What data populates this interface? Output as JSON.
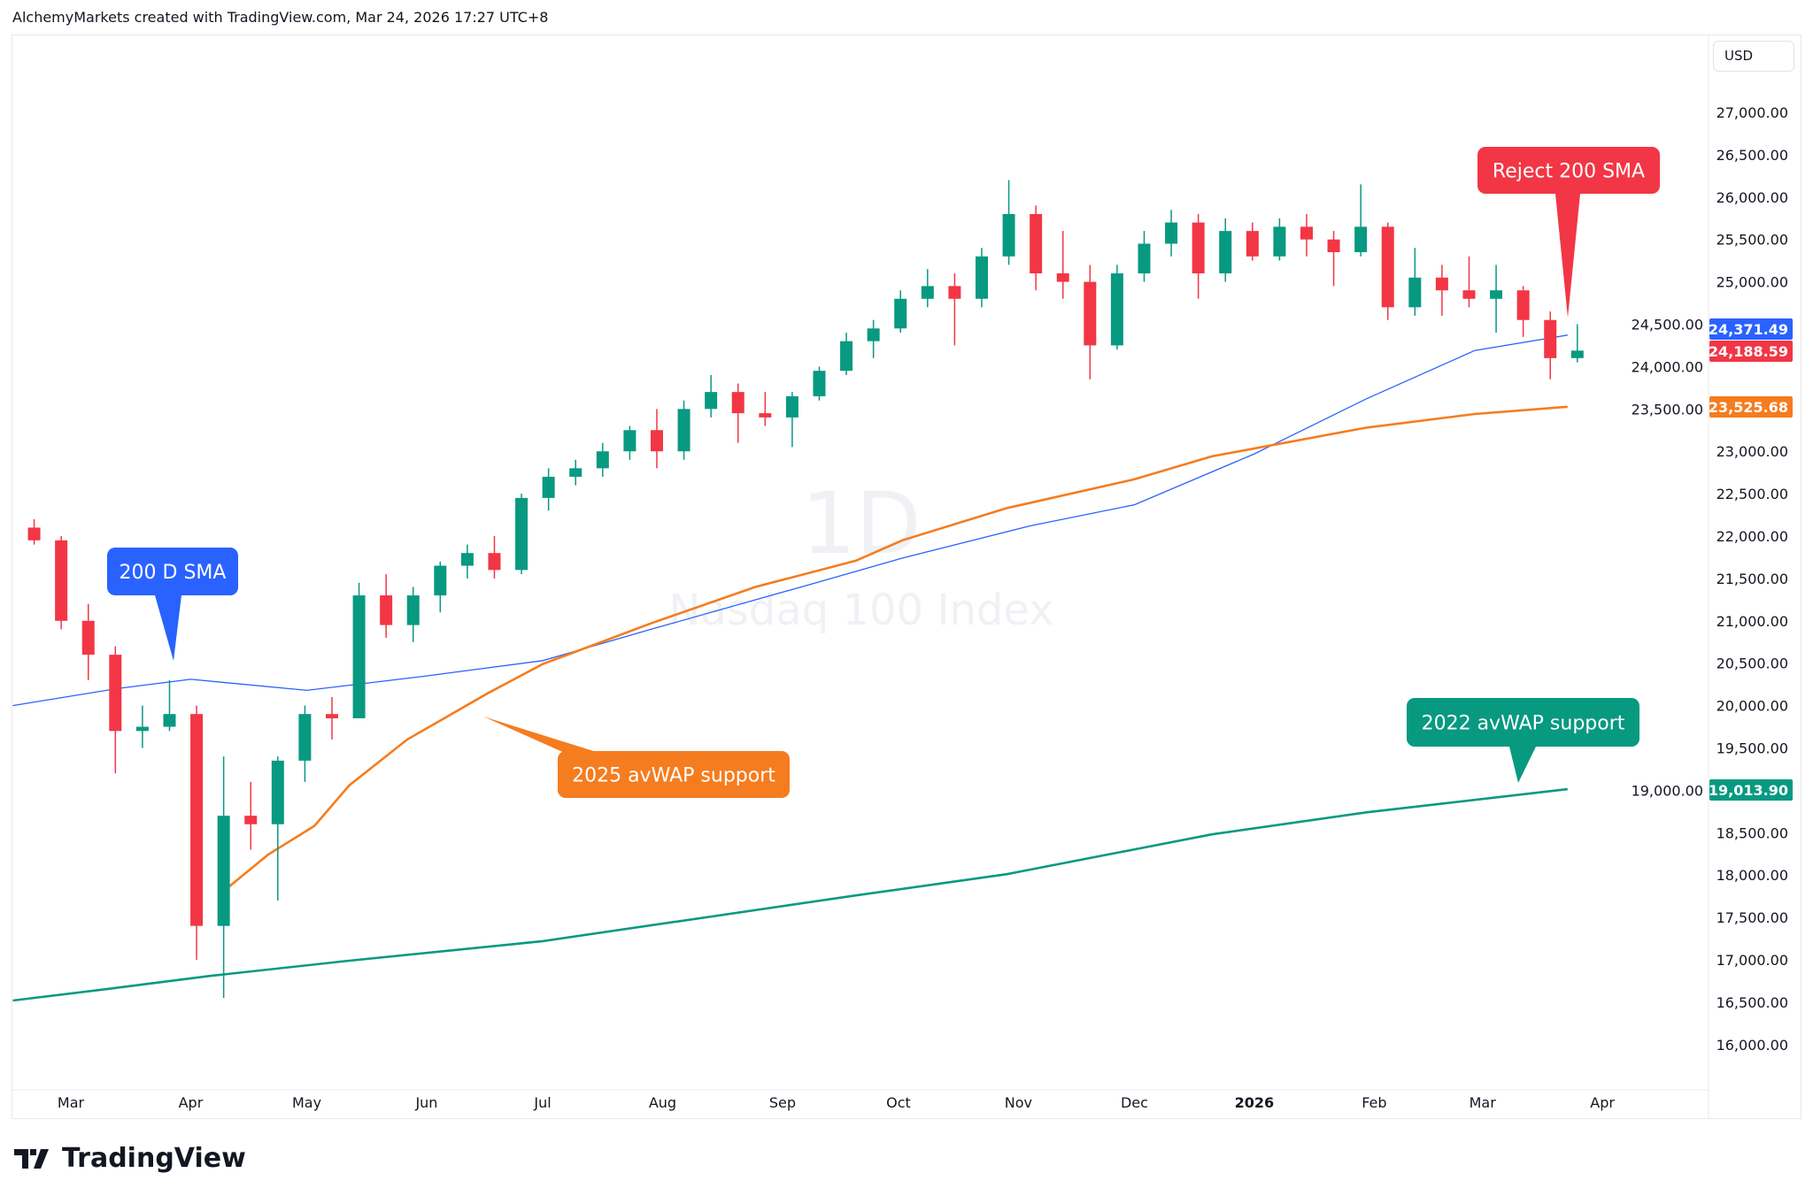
{
  "header": {
    "text": "AlchemyMarkets created with TradingView.com, Mar 24, 2026 17:27 UTC+8"
  },
  "currency": "USD",
  "logo": "TradingView",
  "colors": {
    "up": "#089981",
    "down": "#f23645",
    "sma": "#2962ff",
    "avwap2025": "#f57c1f",
    "avwap2022": "#089981"
  },
  "chart_data": {
    "type": "candlestick",
    "title": "Nasdaq 100 Index",
    "interval": "1D",
    "ylim": [
      15600,
      27700
    ],
    "yticks": [
      16000,
      16500,
      17000,
      17500,
      18000,
      18500,
      19000,
      19500,
      20000,
      20500,
      21000,
      21500,
      22000,
      22500,
      23000,
      23500,
      24000,
      24500,
      25000,
      25500,
      26000,
      26500,
      27000
    ],
    "ytick_labels": [
      "16,000.00",
      "16,500.00",
      "17,000.00",
      "17,500.00",
      "18,000.00",
      "18,500.00",
      "19,000.00",
      "19,500.00",
      "20,000.00",
      "20,500.00",
      "21,000.00",
      "21,500.00",
      "22,000.00",
      "22,500.00",
      "23,000.00",
      "23,500.00",
      "24,000.00",
      "24,500.00",
      "25,000.00",
      "25,500.00",
      "26,000.00",
      "26,500.00",
      "27,000.00"
    ],
    "xticks": [
      {
        "date": "2025-03-01",
        "label": "Mar"
      },
      {
        "date": "2025-04-01",
        "label": "Apr"
      },
      {
        "date": "2025-05-01",
        "label": "May"
      },
      {
        "date": "2025-06-01",
        "label": "Jun"
      },
      {
        "date": "2025-07-01",
        "label": "Jul"
      },
      {
        "date": "2025-08-01",
        "label": "Aug"
      },
      {
        "date": "2025-09-01",
        "label": "Sep"
      },
      {
        "date": "2025-10-01",
        "label": "Oct"
      },
      {
        "date": "2025-11-01",
        "label": "Nov"
      },
      {
        "date": "2025-12-01",
        "label": "Dec"
      },
      {
        "date": "2026-01-01",
        "label": "2026",
        "bold": true
      },
      {
        "date": "2026-02-01",
        "label": "Feb"
      },
      {
        "date": "2026-03-01",
        "label": "Mar"
      },
      {
        "date": "2026-04-01",
        "label": "Apr"
      }
    ],
    "candles_weekly_ohlc": [
      [
        "2025-02-17",
        22100,
        22200,
        21900,
        21950
      ],
      [
        "2025-02-24",
        21950,
        22000,
        20900,
        21000
      ],
      [
        "2025-03-03",
        21000,
        21200,
        20300,
        20600
      ],
      [
        "2025-03-10",
        20600,
        20700,
        19200,
        19700
      ],
      [
        "2025-03-17",
        19700,
        20000,
        19500,
        19750
      ],
      [
        "2025-03-24",
        19750,
        20300,
        19700,
        19900
      ],
      [
        "2025-03-31",
        19900,
        20000,
        17000,
        17400
      ],
      [
        "2025-04-07",
        17400,
        19400,
        16550,
        18700
      ],
      [
        "2025-04-14",
        18700,
        19100,
        18300,
        18600
      ],
      [
        "2025-04-21",
        18600,
        19400,
        17700,
        19350
      ],
      [
        "2025-04-28",
        19350,
        20000,
        19100,
        19900
      ],
      [
        "2025-05-05",
        19900,
        20100,
        19600,
        19850
      ],
      [
        "2025-05-12",
        19850,
        21450,
        19850,
        21300
      ],
      [
        "2025-05-19",
        21300,
        21550,
        20800,
        20950
      ],
      [
        "2025-05-26",
        20950,
        21400,
        20750,
        21300
      ],
      [
        "2025-06-02",
        21300,
        21700,
        21100,
        21650
      ],
      [
        "2025-06-09",
        21650,
        21900,
        21500,
        21800
      ],
      [
        "2025-06-16",
        21800,
        22000,
        21500,
        21600
      ],
      [
        "2025-06-23",
        21600,
        22500,
        21550,
        22450
      ],
      [
        "2025-06-30",
        22450,
        22800,
        22300,
        22700
      ],
      [
        "2025-07-07",
        22700,
        22900,
        22600,
        22800
      ],
      [
        "2025-07-14",
        22800,
        23100,
        22700,
        23000
      ],
      [
        "2025-07-21",
        23000,
        23300,
        22900,
        23250
      ],
      [
        "2025-07-28",
        23250,
        23500,
        22800,
        23000
      ],
      [
        "2025-08-04",
        23000,
        23600,
        22900,
        23500
      ],
      [
        "2025-08-11",
        23500,
        23900,
        23400,
        23700
      ],
      [
        "2025-08-18",
        23700,
        23800,
        23100,
        23450
      ],
      [
        "2025-08-25",
        23450,
        23700,
        23300,
        23400
      ],
      [
        "2025-09-01",
        23400,
        23700,
        23050,
        23650
      ],
      [
        "2025-09-08",
        23650,
        24000,
        23600,
        23950
      ],
      [
        "2025-09-15",
        23950,
        24400,
        23900,
        24300
      ],
      [
        "2025-09-22",
        24300,
        24550,
        24100,
        24450
      ],
      [
        "2025-09-29",
        24450,
        24900,
        24400,
        24800
      ],
      [
        "2025-10-06",
        24800,
        25150,
        24700,
        24950
      ],
      [
        "2025-10-13",
        24950,
        25100,
        24250,
        24800
      ],
      [
        "2025-10-20",
        24800,
        25400,
        24700,
        25300
      ],
      [
        "2025-10-27",
        25300,
        26200,
        25200,
        25800
      ],
      [
        "2025-11-03",
        25800,
        25900,
        24900,
        25100
      ],
      [
        "2025-11-10",
        25100,
        25600,
        24800,
        25000
      ],
      [
        "2025-11-17",
        25000,
        25200,
        23850,
        24250
      ],
      [
        "2025-11-24",
        24250,
        25200,
        24200,
        25100
      ],
      [
        "2025-12-01",
        25100,
        25600,
        25000,
        25450
      ],
      [
        "2025-12-08",
        25450,
        25850,
        25300,
        25700
      ],
      [
        "2025-12-15",
        25700,
        25800,
        24800,
        25100
      ],
      [
        "2025-12-22",
        25100,
        25750,
        25000,
        25600
      ],
      [
        "2025-12-29",
        25600,
        25700,
        25250,
        25300
      ],
      [
        "2026-01-05",
        25300,
        25750,
        25250,
        25650
      ],
      [
        "2026-01-12",
        25650,
        25800,
        25300,
        25500
      ],
      [
        "2026-01-19",
        25500,
        25600,
        24950,
        25350
      ],
      [
        "2026-01-26",
        25350,
        26150,
        25300,
        25650
      ],
      [
        "2026-02-02",
        25650,
        25700,
        24550,
        24700
      ],
      [
        "2026-02-09",
        24700,
        25400,
        24600,
        25050
      ],
      [
        "2026-02-16",
        25050,
        25200,
        24600,
        24900
      ],
      [
        "2026-02-23",
        24900,
        25300,
        24700,
        24800
      ],
      [
        "2026-03-02",
        24800,
        25200,
        24400,
        24900
      ],
      [
        "2026-03-09",
        24900,
        24950,
        24350,
        24550
      ],
      [
        "2026-03-16",
        24550,
        24650,
        23850,
        24100
      ],
      [
        "2026-03-23",
        24100,
        24500,
        24050,
        24188.59
      ]
    ],
    "series": [
      {
        "name": "200 D SMA",
        "color": "#2962ff",
        "last_label": "24,371.49",
        "points": [
          [
            "2025-02-14",
            20000
          ],
          [
            "2025-03-13",
            20200
          ],
          [
            "2025-04-01",
            20310
          ],
          [
            "2025-05-01",
            20180
          ],
          [
            "2025-06-01",
            20350
          ],
          [
            "2025-07-01",
            20530
          ],
          [
            "2025-07-29",
            20900
          ],
          [
            "2025-09-09",
            21440
          ],
          [
            "2025-10-02",
            21740
          ],
          [
            "2025-11-04",
            22120
          ],
          [
            "2025-12-01",
            22370
          ],
          [
            "2026-01-01",
            22970
          ],
          [
            "2026-01-30",
            23620
          ],
          [
            "2026-02-27",
            24190
          ],
          [
            "2026-03-23",
            24371.49
          ]
        ]
      },
      {
        "name": "2025 avWAP",
        "color": "#f57c1f",
        "last_label": "23,525.68",
        "points": [
          [
            "2025-04-10",
            17830
          ],
          [
            "2025-04-21",
            18240
          ],
          [
            "2025-05-03",
            18580
          ],
          [
            "2025-05-12",
            19060
          ],
          [
            "2025-05-27",
            19600
          ],
          [
            "2025-06-17",
            20150
          ],
          [
            "2025-07-01",
            20490
          ],
          [
            "2025-07-29",
            20970
          ],
          [
            "2025-08-25",
            21400
          ],
          [
            "2025-09-20",
            21710
          ],
          [
            "2025-10-02",
            21950
          ],
          [
            "2025-10-29",
            22330
          ],
          [
            "2025-12-01",
            22670
          ],
          [
            "2025-12-21",
            22940
          ],
          [
            "2026-01-30",
            23280
          ],
          [
            "2026-02-27",
            23440
          ],
          [
            "2026-03-23",
            23525.68
          ]
        ]
      },
      {
        "name": "2022 avWAP",
        "color": "#089981",
        "last_label": "19,013.90",
        "points": [
          [
            "2025-02-14",
            16520
          ],
          [
            "2025-03-13",
            16670
          ],
          [
            "2025-04-06",
            16810
          ],
          [
            "2025-05-12",
            16990
          ],
          [
            "2025-07-01",
            17220
          ],
          [
            "2025-09-20",
            17760
          ],
          [
            "2025-10-29",
            18010
          ],
          [
            "2025-12-21",
            18480
          ],
          [
            "2026-01-30",
            18740
          ],
          [
            "2026-03-23",
            19013.9
          ]
        ]
      }
    ],
    "last_close_label": "24,188.59",
    "annotations": [
      {
        "text": "200 D SMA",
        "color": "#2962ff"
      },
      {
        "text": "2025 avWAP support",
        "color": "#f57c1f"
      },
      {
        "text": "2022 avWAP support",
        "color": "#089981"
      },
      {
        "text": "Reject 200 SMA",
        "color": "#f23645"
      }
    ],
    "watermark": {
      "interval": "1D",
      "symbol": "Nasdaq 100 Index"
    }
  }
}
